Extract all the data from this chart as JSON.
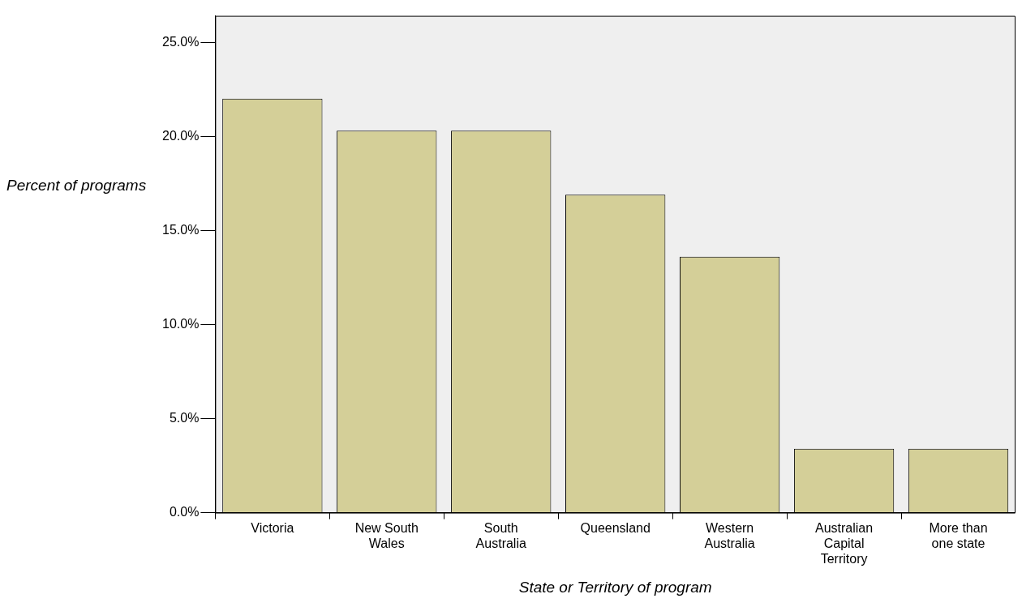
{
  "chart_data": {
    "type": "bar",
    "xlabel": "State or Territory of program",
    "ylabel": "Percent of programs",
    "categories": [
      "Victoria",
      "New South Wales",
      "South Australia",
      "Queensland",
      "Western Australia",
      "Australian Capital Territory",
      "More than one state"
    ],
    "values": [
      22.0,
      20.3,
      20.3,
      16.9,
      13.6,
      3.4,
      3.4
    ],
    "color": "#d4cf98",
    "ylim": [
      0,
      26.4
    ],
    "yticks": [
      {
        "value": 0,
        "label": "0.0%"
      },
      {
        "value": 5,
        "label": "5.0%"
      },
      {
        "value": 10,
        "label": "10.0%"
      },
      {
        "value": 15,
        "label": "15.0%"
      },
      {
        "value": 20,
        "label": "20.0%"
      },
      {
        "value": 25,
        "label": "25.0%"
      }
    ],
    "grid": false,
    "legend": false
  }
}
